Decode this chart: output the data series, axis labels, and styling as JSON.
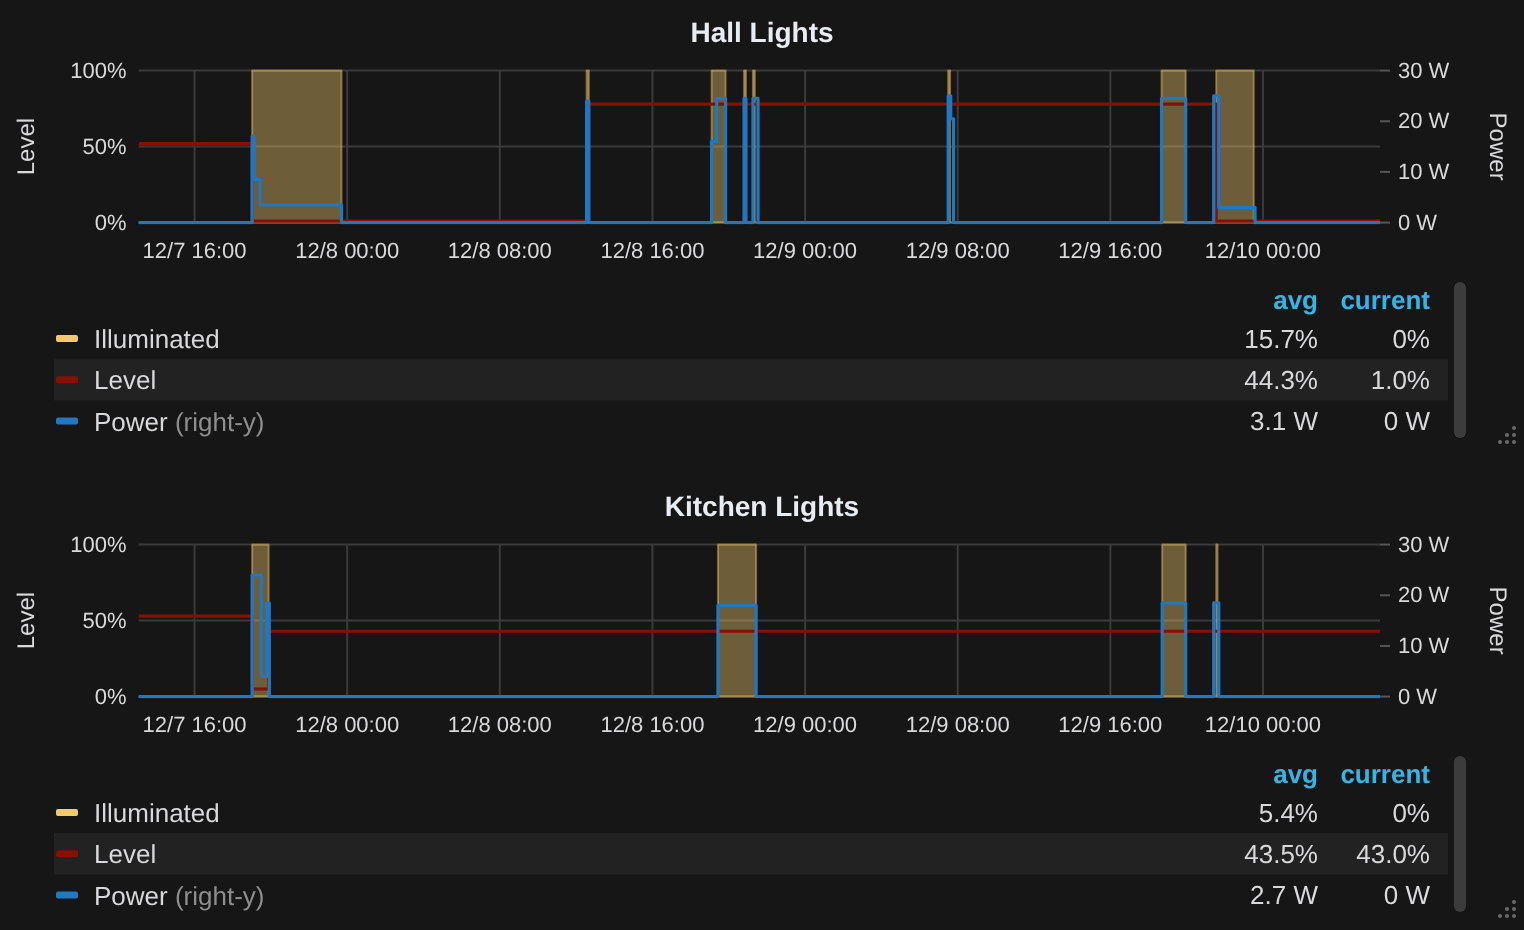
{
  "chart_data": [
    {
      "type": "step",
      "title": "Hall Lights",
      "ylabel": "Level",
      "y2label": "Power",
      "xlim": [
        "--12-07T13:04",
        "--12-10T06:08"
      ],
      "xticks": [
        {
          "value": "--12-07T16:00",
          "label": "12/7 16:00"
        },
        {
          "value": "--12-08T00:00",
          "label": "12/8 00:00"
        },
        {
          "value": "--12-08T08:00",
          "label": "12/8 08:00"
        },
        {
          "value": "--12-08T16:00",
          "label": "12/8 16:00"
        },
        {
          "value": "--12-09T00:00",
          "label": "12/9 00:00"
        },
        {
          "value": "--12-09T08:00",
          "label": "12/9 08:00"
        },
        {
          "value": "--12-09T16:00",
          "label": "12/9 16:00"
        },
        {
          "value": "--12-10T00:00",
          "label": "12/10 00:00"
        }
      ],
      "ylim": [
        0,
        100
      ],
      "yticks": [
        {
          "value": 0,
          "label": "0%"
        },
        {
          "value": 50,
          "label": "50%"
        },
        {
          "value": 100,
          "label": "100%"
        }
      ],
      "y2lim": [
        0,
        30
      ],
      "y2ticks": [
        {
          "value": 0,
          "label": "0 W"
        },
        {
          "value": 10,
          "label": "10 W"
        },
        {
          "value": 20,
          "label": "20 W"
        },
        {
          "value": 30,
          "label": "30 W"
        }
      ],
      "grid": true,
      "legend": "bottom",
      "annotations": [
        "avg",
        "current",
        "15.7%",
        "0%",
        "44.3%",
        "1.0%",
        "3.1 W",
        "0 W"
      ],
      "series": [
        {
          "name": "Illuminated",
          "type": "area",
          "color": "#f2c96d",
          "x": [
            "--12-07T13:04",
            "--12-07T19:01",
            "--12-07T19:01",
            "--12-07T23:42",
            "--12-07T23:42",
            "--12-08T12:33",
            "--12-08T12:33",
            "--12-08T12:40",
            "--12-08T12:40",
            "--12-08T19:06",
            "--12-08T19:06",
            "--12-08T19:50",
            "--12-08T19:50",
            "--12-08T20:48",
            "--12-08T20:48",
            "--12-08T20:54",
            "--12-08T20:54",
            "--12-08T21:16",
            "--12-08T21:16",
            "--12-08T21:22",
            "--12-08T21:22",
            "--12-09T07:30",
            "--12-09T07:30",
            "--12-09T07:36",
            "--12-09T07:36",
            "--12-09T18:41",
            "--12-09T18:41",
            "--12-09T19:57",
            "--12-09T19:57",
            "--12-09T21:33",
            "--12-09T21:33",
            "--12-09T23:31",
            "--12-09T23:31",
            "--12-10T06:08"
          ],
          "values": [
            0,
            0,
            100,
            100,
            0,
            0,
            100,
            100,
            0,
            0,
            100,
            100,
            0,
            0,
            100,
            100,
            0,
            0,
            100,
            100,
            0,
            0,
            100,
            100,
            0,
            0,
            100,
            100,
            0,
            0,
            100,
            100,
            0,
            0
          ]
        },
        {
          "name": "Level",
          "color": "#890f02",
          "x": [
            "--12-07T13:04",
            "--12-07T19:01",
            "--12-08T12:33",
            "--12-09T21:33",
            "--12-10T06:08"
          ],
          "values": [
            52,
            1,
            78,
            1,
            1
          ]
        },
        {
          "name": "Power (right-y)",
          "axis": "y2",
          "color": "#1f78c1",
          "x": [
            "--12-07T13:04",
            "--12-07T19:01",
            "--12-07T19:07",
            "--12-07T19:26",
            "--12-07T23:42",
            "--12-08T12:33",
            "--12-08T12:40",
            "--12-08T19:06",
            "--12-08T19:22",
            "--12-08T19:50",
            "--12-08T20:48",
            "--12-08T20:54",
            "--12-08T21:16",
            "--12-08T21:32",
            "--12-09T07:30",
            "--12-09T07:38",
            "--12-09T07:47",
            "--12-09T18:41",
            "--12-09T19:57",
            "--12-09T21:25",
            "--12-09T21:41",
            "--12-09T23:35",
            "--12-10T06:08"
          ],
          "values": [
            0,
            17,
            8.5,
            3.5,
            0,
            24,
            0,
            16,
            24.5,
            0,
            24.5,
            0,
            24.5,
            0,
            25,
            20.5,
            0,
            24.5,
            0,
            25,
            3,
            0,
            0
          ]
        }
      ]
    },
    {
      "type": "step",
      "title": "Kitchen Lights",
      "ylabel": "Level",
      "y2label": "Power",
      "xlim": [
        "--12-07T13:04",
        "--12-10T06:08"
      ],
      "xticks": [
        {
          "value": "--12-07T16:00",
          "label": "12/7 16:00"
        },
        {
          "value": "--12-08T00:00",
          "label": "12/8 00:00"
        },
        {
          "value": "--12-08T08:00",
          "label": "12/8 08:00"
        },
        {
          "value": "--12-08T16:00",
          "label": "12/8 16:00"
        },
        {
          "value": "--12-09T00:00",
          "label": "12/9 00:00"
        },
        {
          "value": "--12-09T08:00",
          "label": "12/9 08:00"
        },
        {
          "value": "--12-09T16:00",
          "label": "12/9 16:00"
        },
        {
          "value": "--12-10T00:00",
          "label": "12/10 00:00"
        }
      ],
      "ylim": [
        0,
        100
      ],
      "yticks": [
        {
          "value": 0,
          "label": "0%"
        },
        {
          "value": 50,
          "label": "50%"
        },
        {
          "value": 100,
          "label": "100%"
        }
      ],
      "y2lim": [
        0,
        30
      ],
      "y2ticks": [
        {
          "value": 0,
          "label": "0 W"
        },
        {
          "value": 10,
          "label": "10 W"
        },
        {
          "value": 20,
          "label": "20 W"
        },
        {
          "value": 30,
          "label": "30 W"
        }
      ],
      "grid": true,
      "legend": "bottom",
      "annotations": [
        "avg",
        "current",
        "5.4%",
        "0%",
        "43.5%",
        "43.0%",
        "2.7 W",
        "0 W"
      ],
      "series": [
        {
          "name": "Illuminated",
          "type": "area",
          "color": "#f2c96d",
          "x": [
            "--12-07T13:04",
            "--12-07T19:01",
            "--12-07T19:01",
            "--12-07T19:53",
            "--12-07T19:53",
            "--12-08T19:26",
            "--12-08T19:26",
            "--12-08T21:26",
            "--12-08T21:26",
            "--12-09T18:43",
            "--12-09T18:43",
            "--12-09T19:57",
            "--12-09T19:57",
            "--12-09T21:33",
            "--12-09T21:33",
            "--12-09T21:37",
            "--12-09T21:37",
            "--12-10T06:08"
          ],
          "values": [
            0,
            0,
            100,
            100,
            0,
            0,
            100,
            100,
            0,
            0,
            100,
            100,
            0,
            0,
            100,
            100,
            0,
            0
          ]
        },
        {
          "name": "Level",
          "color": "#890f02",
          "x": [
            "--12-07T13:04",
            "--12-07T19:01",
            "--12-07T19:53",
            "--12-10T06:08"
          ],
          "values": [
            53,
            5,
            43,
            43
          ]
        },
        {
          "name": "Power (right-y)",
          "axis": "y2",
          "color": "#1f78c1",
          "x": [
            "--12-07T13:04",
            "--12-07T19:01",
            "--12-07T19:30",
            "--12-07T19:47",
            "--12-07T19:55",
            "--12-08T19:26",
            "--12-08T21:26",
            "--12-09T18:43",
            "--12-09T19:57",
            "--12-09T21:25",
            "--12-09T21:41",
            "--12-10T06:08"
          ],
          "values": [
            0,
            24,
            4,
            18.5,
            0,
            18,
            0,
            18.5,
            0,
            18.5,
            0,
            0
          ]
        }
      ]
    }
  ]
}
